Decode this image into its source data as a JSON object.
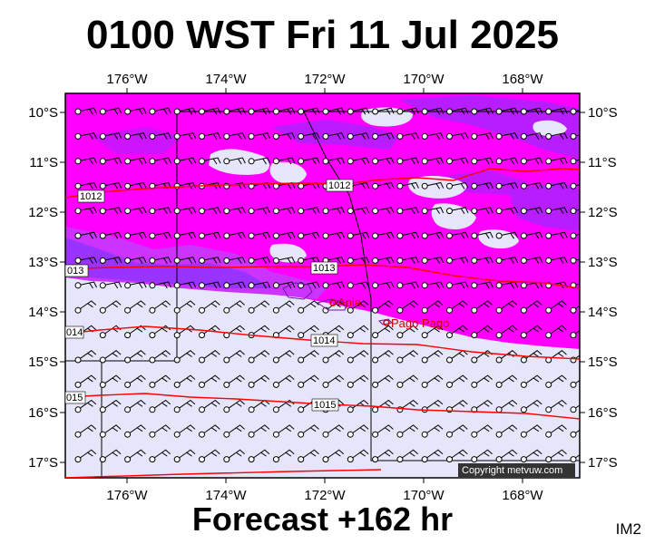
{
  "title": "0100 WST Fri 11 Jul 2025",
  "footer": "Forecast +162 hr",
  "corner_label": "IM2",
  "copyright": "Copyright metvuw.com",
  "map": {
    "lon_ticks": [
      "176°W",
      "174°W",
      "172°W",
      "170°W",
      "168°W"
    ],
    "lat_ticks": [
      "10°S",
      "11°S",
      "12°S",
      "13°S",
      "14°S",
      "15°S",
      "16°S",
      "17°S"
    ],
    "isobar_labels": [
      "1012",
      "1012",
      "013",
      "1013",
      "014",
      "1014",
      "015",
      "1015"
    ],
    "places": [
      "Apia",
      "Pago Pago"
    ],
    "colors": {
      "magenta": "#ff00ff",
      "violet": "#aa22ff",
      "purple": "#7722ee",
      "lavender": "#e6e6fa",
      "isobar": "#ff0000",
      "place": "#cc0000"
    }
  }
}
